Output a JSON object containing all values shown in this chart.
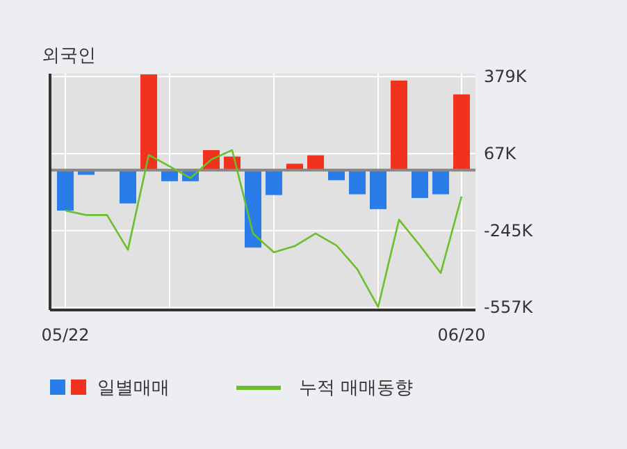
{
  "chart_data": {
    "type": "bar",
    "title": "외국인",
    "categories": [
      "05/22",
      null,
      null,
      null,
      null,
      null,
      null,
      null,
      null,
      null,
      null,
      null,
      null,
      null,
      null,
      null,
      null,
      null,
      null,
      "06/20"
    ],
    "series": [
      {
        "name": "일별매매",
        "colors": [
          "#2a7de8",
          "#2a7de8",
          "#2a7de8",
          "#2a7de8",
          "#f0321e",
          "#2a7de8",
          "#2a7de8",
          "#f0321e",
          "#f0321e",
          "#2a7de8",
          "#2a7de8",
          "#f0321e",
          "#f0321e",
          "#2a7de8",
          "#2a7de8",
          "#2a7de8",
          "#f0321e",
          "#2a7de8",
          "#2a7de8",
          "#f0321e"
        ],
        "values": [
          -164,
          -19,
          0,
          -135,
          388,
          -45,
          -45,
          81,
          55,
          -314,
          -101,
          26,
          60,
          -41,
          -98,
          -158,
          363,
          -113,
          -98,
          307
        ]
      },
      {
        "name": "누적 매매동향",
        "type": "line",
        "color": "#6abf2a",
        "values": [
          -164,
          -182,
          -182,
          -323,
          62,
          15,
          -32,
          43,
          81,
          -257,
          -333,
          -308,
          -257,
          -305,
          -402,
          -555,
          -201,
          -305,
          -417,
          -107
        ]
      }
    ],
    "ylim": [
      -567,
      391
    ],
    "yticks": [
      {
        "value": 379,
        "label": "379K"
      },
      {
        "value": 67,
        "label": "67K"
      },
      {
        "value": -245,
        "label": "-245K"
      },
      {
        "value": -557,
        "label": "-557K"
      }
    ],
    "grid": true,
    "legend": "bottom"
  }
}
